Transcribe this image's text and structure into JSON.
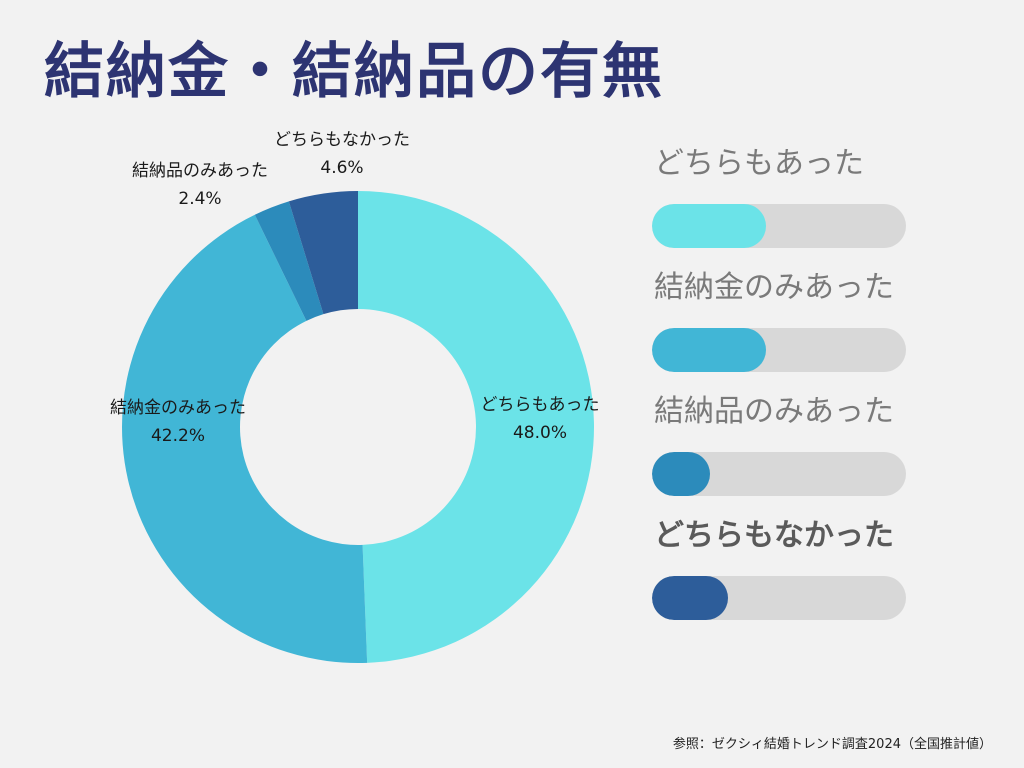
{
  "title": "結納金・結納品の有無",
  "source": "参照：ゼクシィ結婚トレンド調査2024（全国推計値）",
  "chart_data": {
    "type": "donut",
    "title": "結納金・結納品の有無",
    "slices": [
      {
        "label": "どちらもあった",
        "value": 48.0,
        "display": "48.0%",
        "color": "#6be3e8"
      },
      {
        "label": "結納金のみあった",
        "value": 42.2,
        "display": "42.2%",
        "color": "#41b6d6"
      },
      {
        "label": "結納品のみあった",
        "value": 2.4,
        "display": "2.4%",
        "color": "#2c8bbb"
      },
      {
        "label": "どちらもなかった",
        "value": 4.6,
        "display": "4.6%",
        "color": "#2d5d9a"
      }
    ]
  },
  "legend": {
    "items": [
      {
        "label": "どちらもあった",
        "fill_percent": 45,
        "color": "#6be3e8"
      },
      {
        "label": "結納金のみあった",
        "fill_percent": 45,
        "color": "#41b6d6"
      },
      {
        "label": "結納品のみあった",
        "fill_percent": 23,
        "color": "#2c8bbb"
      },
      {
        "label": "どちらもなかった",
        "fill_percent": 30,
        "color": "#2d5d9a"
      }
    ]
  }
}
